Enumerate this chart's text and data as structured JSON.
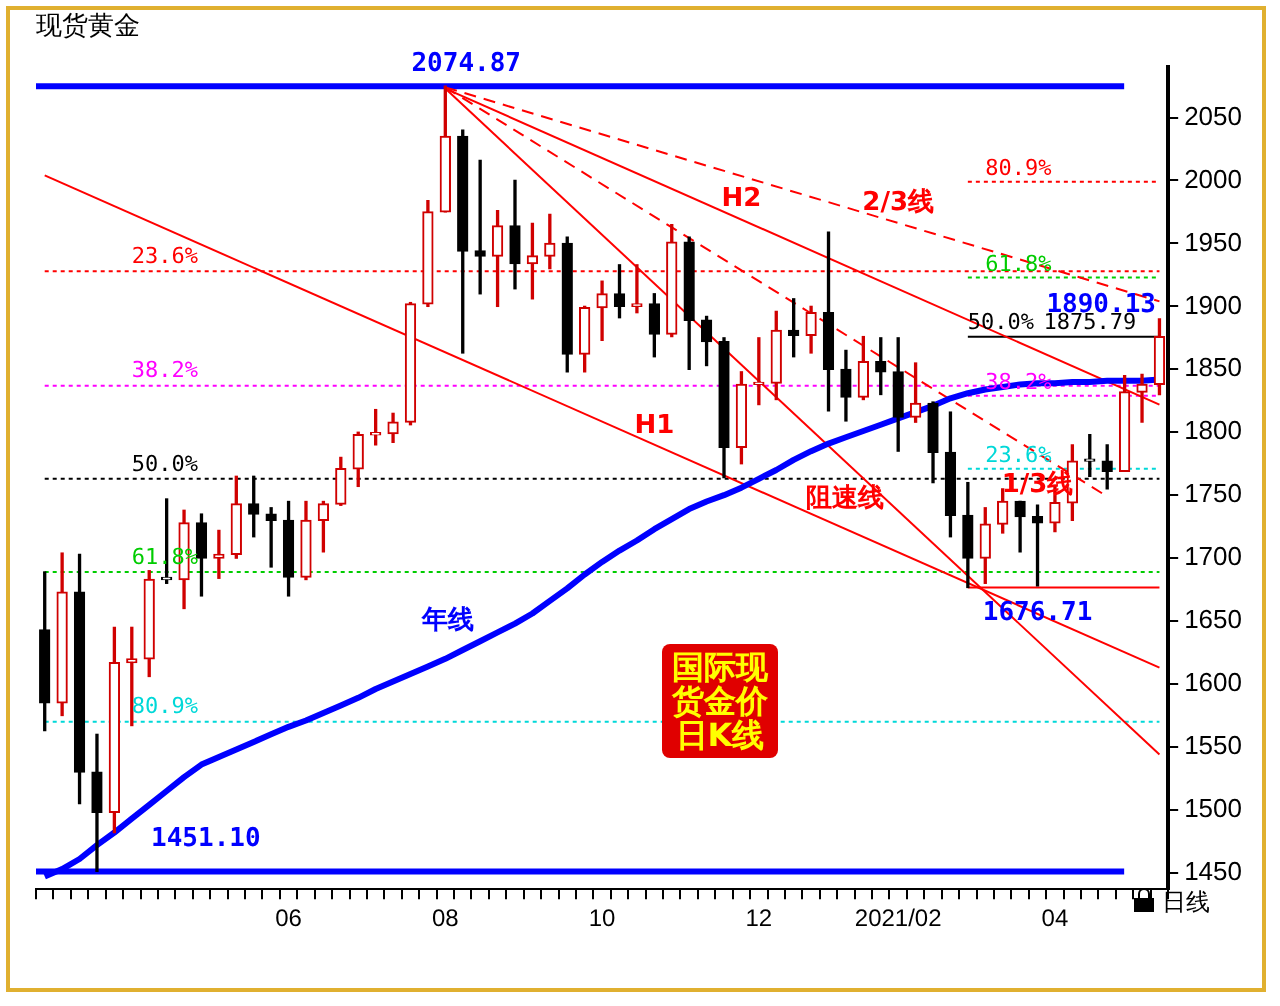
{
  "chart_data": {
    "type": "candlestick",
    "title": "现货黄金",
    "colors": [
      "#000000",
      "#d00000",
      "#000000",
      "#000000",
      "#d00000",
      "#d00000",
      "#d00000",
      "#000000",
      "#d00000",
      "#000000",
      "#d00000",
      "#d00000",
      "#000000",
      "#000000",
      "#000000",
      "#d00000",
      "#d00000",
      "#d00000",
      "#d00000",
      "#d00000",
      "#d00000",
      "#d00000",
      "#d00000",
      "#d00000",
      "#000000",
      "#000000",
      "#d00000",
      "#000000",
      "#d00000",
      "#d00000",
      "#000000",
      "#d00000",
      "#d00000",
      "#000000",
      "#d00000",
      "#000000",
      "#d00000",
      "#000000",
      "#000000",
      "#000000",
      "#d00000",
      "#d00000",
      "#d00000",
      "#000000",
      "#d00000",
      "#000000",
      "#000000",
      "#d00000",
      "#000000",
      "#000000",
      "#d00000",
      "#000000",
      "#000000",
      "#000000",
      "#d00000",
      "#d00000",
      "#000000",
      "#000000",
      "#d00000",
      "#d00000",
      "#000000",
      "#000000",
      "#d00000",
      "#d00000",
      "#d00000"
    ],
    "categories": [
      null,
      null,
      null,
      null,
      null,
      null,
      null,
      null,
      null,
      null,
      null,
      null,
      null,
      null,
      "06",
      null,
      null,
      null,
      null,
      null,
      null,
      null,
      null,
      "08",
      null,
      null,
      null,
      null,
      null,
      null,
      null,
      null,
      "10",
      null,
      null,
      null,
      null,
      null,
      null,
      null,
      null,
      "12",
      null,
      null,
      null,
      null,
      null,
      null,
      null,
      "2021/02",
      null,
      null,
      null,
      null,
      null,
      null,
      null,
      null,
      "04",
      null,
      null,
      null,
      null,
      null,
      null
    ],
    "ohlc": [
      [
        1643,
        1689,
        1563,
        1585
      ],
      [
        1585,
        1704,
        1575,
        1673
      ],
      [
        1673,
        1703,
        1505,
        1530
      ],
      [
        1530,
        1560,
        1451.1,
        1498
      ],
      [
        1498,
        1645,
        1482,
        1617
      ],
      [
        1617,
        1645,
        1567,
        1620
      ],
      [
        1620,
        1690,
        1606,
        1683
      ],
      [
        1683,
        1747,
        1680,
        1683
      ],
      [
        1683,
        1738,
        1660,
        1728
      ],
      [
        1728,
        1735,
        1670,
        1700
      ],
      [
        1700,
        1722,
        1684,
        1703
      ],
      [
        1703,
        1765,
        1700,
        1743
      ],
      [
        1743,
        1765,
        1717,
        1735
      ],
      [
        1735,
        1740,
        1693,
        1730
      ],
      [
        1730,
        1745,
        1670,
        1685
      ],
      [
        1685,
        1745,
        1683,
        1730
      ],
      [
        1730,
        1745,
        1705,
        1743
      ],
      [
        1743,
        1780,
        1742,
        1771
      ],
      [
        1771,
        1800,
        1757,
        1798
      ],
      [
        1798,
        1818,
        1790,
        1799
      ],
      [
        1799,
        1815,
        1792,
        1808
      ],
      [
        1808,
        1903,
        1806,
        1902
      ],
      [
        1902,
        1984,
        1900,
        1975
      ],
      [
        1975,
        2074.87,
        1975,
        2035
      ],
      [
        2035,
        2040,
        1863,
        1944
      ],
      [
        1944,
        2016,
        1910,
        1940
      ],
      [
        1940,
        1976,
        1900,
        1964
      ],
      [
        1964,
        2000,
        1914,
        1934
      ],
      [
        1934,
        1966,
        1906,
        1940
      ],
      [
        1940,
        1973,
        1930,
        1950
      ],
      [
        1950,
        1955,
        1848,
        1862
      ],
      [
        1862,
        1900,
        1848,
        1899
      ],
      [
        1899,
        1920,
        1873,
        1910
      ],
      [
        1910,
        1933,
        1891,
        1900
      ],
      [
        1900,
        1933,
        1895,
        1902
      ],
      [
        1902,
        1910,
        1860,
        1878
      ],
      [
        1878,
        1965,
        1876,
        1951
      ],
      [
        1951,
        1955,
        1850,
        1889
      ],
      [
        1889,
        1892,
        1853,
        1872
      ],
      [
        1872,
        1875,
        1764,
        1788
      ],
      [
        1788,
        1848,
        1775,
        1838
      ],
      [
        1838,
        1875,
        1822,
        1839
      ],
      [
        1839,
        1896,
        1826,
        1881
      ],
      [
        1881,
        1906,
        1860,
        1877
      ],
      [
        1877,
        1900,
        1863,
        1895
      ],
      [
        1895,
        1959,
        1817,
        1850
      ],
      [
        1850,
        1865,
        1809,
        1828
      ],
      [
        1828,
        1876,
        1826,
        1856
      ],
      [
        1856,
        1875,
        1830,
        1848
      ],
      [
        1848,
        1875,
        1785,
        1812
      ],
      [
        1812,
        1855,
        1808,
        1823
      ],
      [
        1823,
        1824,
        1760,
        1784
      ],
      [
        1784,
        1816,
        1717,
        1734
      ],
      [
        1734,
        1760,
        1676.71,
        1700
      ],
      [
        1700,
        1740,
        1680,
        1727
      ],
      [
        1727,
        1755,
        1720,
        1745
      ],
      [
        1745,
        1745,
        1705,
        1733
      ],
      [
        1733,
        1742,
        1678,
        1728
      ],
      [
        1728,
        1758,
        1721,
        1744
      ],
      [
        1744,
        1790,
        1730,
        1777
      ],
      [
        1777,
        1798,
        1765,
        1777
      ],
      [
        1777,
        1790,
        1755,
        1769
      ],
      [
        1769,
        1845,
        1769,
        1832
      ],
      [
        1832,
        1846,
        1808,
        1838
      ],
      [
        1838,
        1890.13,
        1830,
        1876
      ]
    ],
    "ylim": [
      1437,
      2090
    ],
    "yticks": [
      1450,
      1500,
      1550,
      1600,
      1650,
      1700,
      1750,
      1800,
      1850,
      1900,
      1950,
      2000,
      2050
    ],
    "series": [
      {
        "name": "年线",
        "type": "line",
        "color": "#0000ff",
        "values": [
          1447,
          1453,
          1461,
          1472,
          1482,
          1493,
          1504,
          1515,
          1526,
          1536,
          1542,
          1548,
          1554,
          1560,
          1566,
          1571,
          1577,
          1583,
          1589,
          1596,
          1602,
          1608,
          1614,
          1620,
          1627,
          1634,
          1641,
          1648,
          1656,
          1666,
          1676,
          1687,
          1697,
          1706,
          1714,
          1723,
          1731,
          1739,
          1745,
          1750,
          1756,
          1763,
          1770,
          1778,
          1785,
          1791,
          1796,
          1801,
          1806,
          1811,
          1816,
          1821,
          1827,
          1831,
          1834,
          1836,
          1838,
          1839,
          1839,
          1840,
          1840,
          1841,
          1841,
          1841,
          1842
        ]
      },
      {
        "name": "H1",
        "type": "line",
        "color": "#ff0000",
        "values": [
          2004,
          null,
          null,
          null,
          null,
          null,
          null,
          null,
          null,
          null,
          null,
          null,
          null,
          null,
          null,
          null,
          null,
          null,
          null,
          null,
          null,
          null,
          null,
          null,
          null,
          null,
          null,
          null,
          null,
          null,
          null,
          null,
          null,
          null,
          null,
          null,
          null,
          null,
          null,
          null,
          null,
          null,
          null,
          null,
          null,
          null,
          null,
          null,
          null,
          null,
          null,
          null,
          null,
          null,
          null,
          null,
          null,
          null,
          null,
          null,
          null,
          null,
          null,
          null,
          1613
        ]
      },
      {
        "name": "H2",
        "type": "line",
        "color": "#ff0000",
        "values": [
          null,
          null,
          null,
          null,
          null,
          null,
          null,
          null,
          null,
          null,
          null,
          null,
          null,
          null,
          null,
          null,
          null,
          null,
          null,
          null,
          null,
          null,
          null,
          2073,
          null,
          null,
          null,
          null,
          null,
          null,
          null,
          null,
          null,
          null,
          null,
          null,
          null,
          null,
          null,
          null,
          null,
          null,
          null,
          null,
          null,
          null,
          null,
          null,
          null,
          null,
          null,
          null,
          null,
          null,
          null,
          null,
          null,
          null,
          null,
          null,
          null,
          null,
          null,
          null,
          1822
        ]
      },
      {
        "name": "2/3线",
        "type": "line",
        "line_style": "dashed",
        "color": "#ff0000",
        "values": [
          null,
          null,
          null,
          null,
          null,
          null,
          null,
          null,
          null,
          null,
          null,
          null,
          null,
          null,
          null,
          null,
          null,
          null,
          null,
          null,
          null,
          null,
          null,
          2074,
          null,
          null,
          null,
          null,
          null,
          null,
          null,
          null,
          null,
          null,
          null,
          null,
          null,
          null,
          null,
          null,
          null,
          null,
          null,
          null,
          null,
          null,
          null,
          null,
          null,
          null,
          null,
          null,
          null,
          null,
          null,
          null,
          null,
          null,
          null,
          null,
          null,
          null,
          null,
          null,
          1904
        ]
      },
      {
        "name": "1/3线",
        "type": "line",
        "line_style": "dashed",
        "color": "#ff0000",
        "values": [
          null,
          null,
          null,
          null,
          null,
          null,
          null,
          null,
          null,
          null,
          null,
          null,
          null,
          null,
          null,
          null,
          null,
          null,
          null,
          null,
          null,
          null,
          null,
          2074,
          null,
          null,
          null,
          null,
          null,
          null,
          null,
          null,
          null,
          null,
          null,
          null,
          null,
          null,
          null,
          null,
          null,
          null,
          null,
          null,
          null,
          null,
          null,
          null,
          null,
          null,
          null,
          null,
          null,
          null,
          null,
          null,
          null,
          null,
          null,
          null,
          null,
          1749,
          null,
          null,
          null
        ]
      },
      {
        "name": "阻速线",
        "type": "line",
        "color": "#ff0000",
        "values": [
          null,
          null,
          null,
          null,
          null,
          null,
          null,
          null,
          null,
          null,
          null,
          null,
          null,
          null,
          null,
          null,
          null,
          null,
          null,
          null,
          null,
          null,
          null,
          2073,
          null,
          null,
          null,
          null,
          null,
          null,
          null,
          null,
          null,
          null,
          null,
          null,
          null,
          null,
          null,
          null,
          null,
          null,
          null,
          null,
          null,
          null,
          null,
          null,
          null,
          null,
          null,
          null,
          null,
          null,
          null,
          null,
          null,
          null,
          null,
          null,
          null,
          null,
          null,
          null,
          1544
        ]
      },
      {
        "name": "80.9%",
        "type": "line",
        "line_style": "dotted",
        "color": "#ff0000",
        "values": [
          null,
          null,
          null,
          null,
          null,
          null,
          null,
          null,
          null,
          null,
          null,
          null,
          null,
          null,
          null,
          null,
          null,
          null,
          null,
          null,
          null,
          null,
          null,
          null,
          null,
          null,
          null,
          null,
          null,
          null,
          null,
          null,
          null,
          null,
          null,
          null,
          null,
          null,
          null,
          null,
          null,
          null,
          null,
          null,
          null,
          null,
          null,
          null,
          null,
          null,
          null,
          null,
          null,
          1999,
          null,
          null,
          null,
          null,
          null,
          null,
          null,
          null,
          null,
          null,
          1999
        ]
      },
      {
        "name": "61.8%",
        "type": "line",
        "line_style": "dotted",
        "color": "#00cc00",
        "values": [
          null,
          null,
          null,
          null,
          null,
          null,
          null,
          null,
          null,
          null,
          null,
          null,
          null,
          null,
          null,
          null,
          null,
          null,
          null,
          null,
          null,
          null,
          null,
          null,
          null,
          null,
          null,
          null,
          null,
          null,
          null,
          null,
          null,
          null,
          null,
          null,
          null,
          null,
          null,
          null,
          null,
          null,
          null,
          null,
          null,
          null,
          null,
          null,
          null,
          null,
          null,
          null,
          null,
          1923,
          null,
          null,
          null,
          null,
          null,
          null,
          null,
          null,
          null,
          null,
          1923
        ]
      },
      {
        "name": "50.0%",
        "type": "line",
        "color": "#000000",
        "values": [
          null,
          null,
          null,
          null,
          null,
          null,
          null,
          null,
          null,
          null,
          null,
          null,
          null,
          null,
          null,
          null,
          null,
          null,
          null,
          null,
          null,
          null,
          null,
          null,
          null,
          null,
          null,
          null,
          null,
          null,
          null,
          null,
          null,
          null,
          null,
          null,
          null,
          null,
          null,
          null,
          null,
          null,
          null,
          null,
          null,
          null,
          null,
          null,
          null,
          null,
          null,
          null,
          null,
          1875.79,
          null,
          null,
          null,
          null,
          null,
          null,
          null,
          null,
          null,
          null,
          1875.79
        ]
      },
      {
        "name": "38.2%",
        "type": "line",
        "line_style": "dotted",
        "color": "#ff00ff",
        "values": [
          null,
          null,
          null,
          null,
          null,
          null,
          null,
          null,
          null,
          null,
          null,
          null,
          null,
          null,
          null,
          null,
          null,
          null,
          null,
          null,
          null,
          null,
          null,
          null,
          null,
          null,
          null,
          null,
          null,
          null,
          null,
          null,
          null,
          null,
          null,
          null,
          null,
          null,
          null,
          null,
          null,
          null,
          null,
          null,
          null,
          null,
          null,
          null,
          null,
          null,
          null,
          null,
          null,
          1829,
          null,
          null,
          null,
          null,
          null,
          null,
          null,
          null,
          null,
          null,
          1829
        ]
      },
      {
        "name": "23.6%",
        "type": "line",
        "line_style": "dotted",
        "color": "#00d8d8",
        "values": [
          null,
          null,
          null,
          null,
          null,
          null,
          null,
          null,
          null,
          null,
          null,
          null,
          null,
          null,
          null,
          null,
          null,
          null,
          null,
          null,
          null,
          null,
          null,
          null,
          null,
          null,
          null,
          null,
          null,
          null,
          null,
          null,
          null,
          null,
          null,
          null,
          null,
          null,
          null,
          null,
          null,
          null,
          null,
          null,
          null,
          null,
          null,
          null,
          null,
          null,
          null,
          null,
          null,
          1771,
          null,
          null,
          null,
          null,
          null,
          null,
          null,
          null,
          null,
          null,
          1771
        ]
      },
      {
        "type": "line",
        "color": "#ff0000",
        "values": [
          null,
          null,
          null,
          null,
          null,
          null,
          null,
          null,
          null,
          null,
          null,
          null,
          null,
          null,
          null,
          null,
          null,
          null,
          null,
          null,
          null,
          null,
          null,
          null,
          null,
          null,
          null,
          null,
          null,
          null,
          null,
          null,
          null,
          null,
          null,
          null,
          null,
          null,
          null,
          null,
          null,
          null,
          null,
          null,
          null,
          null,
          null,
          null,
          null,
          null,
          null,
          null,
          null,
          1676.71,
          null,
          null,
          null,
          null,
          null,
          null,
          null,
          null,
          null,
          null,
          1676.71
        ]
      },
      {
        "name": "23.6%",
        "type": "line",
        "line_style": "dotted",
        "color": "#ff0000",
        "values": [
          1928,
          null,
          null,
          null,
          null,
          null,
          null,
          null,
          null,
          null,
          null,
          null,
          null,
          null,
          null,
          null,
          null,
          null,
          null,
          null,
          null,
          null,
          null,
          null,
          null,
          null,
          null,
          null,
          null,
          null,
          null,
          null,
          null,
          null,
          null,
          null,
          null,
          null,
          null,
          null,
          null,
          null,
          null,
          null,
          null,
          null,
          null,
          null,
          null,
          null,
          null,
          null,
          null,
          null,
          null,
          null,
          null,
          null,
          null,
          null,
          null,
          null,
          null,
          null,
          1928
        ]
      },
      {
        "name": "38.2%",
        "type": "line",
        "line_style": "dotted",
        "color": "#ff00ff",
        "values": [
          1837,
          null,
          null,
          null,
          null,
          null,
          null,
          null,
          null,
          null,
          null,
          null,
          null,
          null,
          null,
          null,
          null,
          null,
          null,
          null,
          null,
          null,
          null,
          null,
          null,
          null,
          null,
          null,
          null,
          null,
          null,
          null,
          null,
          null,
          null,
          null,
          null,
          null,
          null,
          null,
          null,
          null,
          null,
          null,
          null,
          null,
          null,
          null,
          null,
          null,
          null,
          null,
          null,
          null,
          null,
          null,
          null,
          null,
          null,
          null,
          null,
          null,
          null,
          null,
          1837
        ]
      },
      {
        "name": "50.0%",
        "type": "line",
        "line_style": "dotted",
        "color": "#000000",
        "values": [
          1763,
          null,
          null,
          null,
          null,
          null,
          null,
          null,
          null,
          null,
          null,
          null,
          null,
          null,
          null,
          null,
          null,
          null,
          null,
          null,
          null,
          null,
          null,
          null,
          null,
          null,
          null,
          null,
          null,
          null,
          null,
          null,
          null,
          null,
          null,
          null,
          null,
          null,
          null,
          null,
          null,
          null,
          null,
          null,
          null,
          null,
          null,
          null,
          null,
          null,
          null,
          null,
          null,
          null,
          null,
          null,
          null,
          null,
          null,
          null,
          null,
          null,
          null,
          null,
          1763
        ]
      },
      {
        "name": "61.8%",
        "type": "line",
        "line_style": "dotted",
        "color": "#00cc00",
        "values": [
          1689,
          null,
          null,
          null,
          null,
          null,
          null,
          null,
          null,
          null,
          null,
          null,
          null,
          null,
          null,
          null,
          null,
          null,
          null,
          null,
          null,
          null,
          null,
          null,
          null,
          null,
          null,
          null,
          null,
          null,
          null,
          null,
          null,
          null,
          null,
          null,
          null,
          null,
          null,
          null,
          null,
          null,
          null,
          null,
          null,
          null,
          null,
          null,
          null,
          null,
          null,
          null,
          null,
          null,
          null,
          null,
          null,
          null,
          null,
          null,
          null,
          null,
          null,
          null,
          1689
        ]
      },
      {
        "name": "80.9%",
        "type": "line",
        "line_style": "dotted",
        "color": "#00d8d8",
        "values": [
          1570,
          null,
          null,
          null,
          null,
          null,
          null,
          null,
          null,
          null,
          null,
          null,
          null,
          null,
          null,
          null,
          null,
          null,
          null,
          null,
          null,
          null,
          null,
          null,
          null,
          null,
          null,
          null,
          null,
          null,
          null,
          null,
          null,
          null,
          null,
          null,
          null,
          null,
          null,
          null,
          null,
          null,
          null,
          null,
          null,
          null,
          null,
          null,
          null,
          null,
          null,
          null,
          null,
          null,
          null,
          null,
          null,
          null,
          null,
          null,
          null,
          null,
          null,
          null,
          1570
        ]
      }
    ],
    "ref_lines": [
      {
        "axis": "y",
        "value": 2074.87,
        "label": "2074.87",
        "color": "#0000ff",
        "line_style": "solid"
      },
      {
        "axis": "y",
        "value": 1451.1,
        "label": "1451.10",
        "color": "#0000ff",
        "line_style": "solid"
      }
    ],
    "annotations": [
      "1890.13",
      {
        "text": "1875.79",
        "y": 1875.79
      },
      {
        "text": "1676.71",
        "y": 1676.71
      },
      "国际现货金价日K线",
      "日线"
    ],
    "grid": false,
    "legend": false
  }
}
